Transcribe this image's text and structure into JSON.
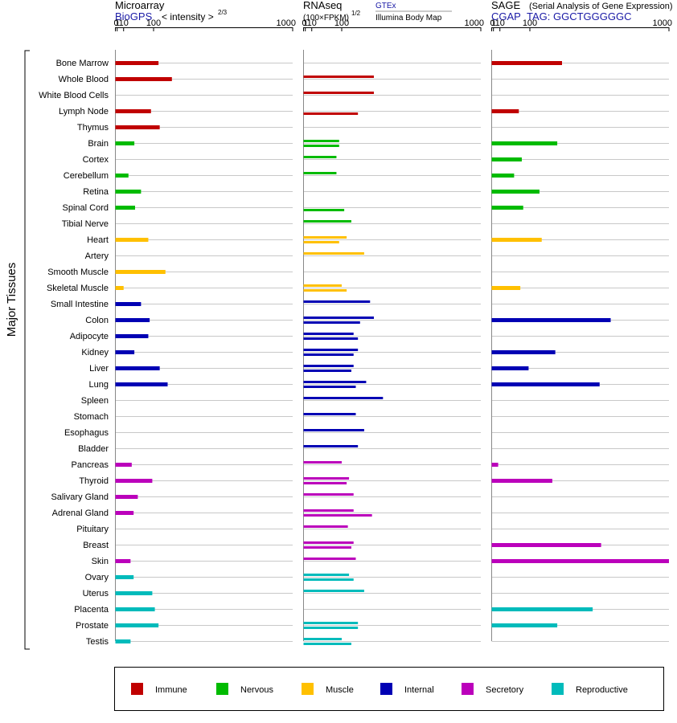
{
  "chart_data": {
    "type": "bar",
    "orientation": "horizontal",
    "y_axis_label": "Major Tissues",
    "scale": "power 2/3",
    "tick_labels": [
      "0",
      "1",
      "10",
      "100",
      "1000"
    ],
    "tick_values": [
      0,
      1,
      10,
      100,
      1000
    ],
    "xlim": [
      0,
      1000
    ],
    "categories": [
      "Bone Marrow",
      "Whole Blood",
      "White Blood Cells",
      "Lymph Node",
      "Thymus",
      "Brain",
      "Cortex",
      "Cerebellum",
      "Retina",
      "Spinal Cord",
      "Tibial Nerve",
      "Heart",
      "Artery",
      "Smooth Muscle",
      "Skeletal Muscle",
      "Small Intestine",
      "Colon",
      "Adipocyte",
      "Kidney",
      "Liver",
      "Lung",
      "Spleen",
      "Stomach",
      "Esophagus",
      "Bladder",
      "Pancreas",
      "Thyroid",
      "Salivary Gland",
      "Adrenal Gland",
      "Pituitary",
      "Breast",
      "Skin",
      "Ovary",
      "Uterus",
      "Placenta",
      "Prostate",
      "Testis"
    ],
    "groups": [
      {
        "name": "Immune",
        "color": "#c00000",
        "count": 5
      },
      {
        "name": "Nervous",
        "color": "#00bb00",
        "count": 6
      },
      {
        "name": "Muscle",
        "color": "#ffc000",
        "count": 4
      },
      {
        "name": "Internal",
        "color": "#0000b4",
        "count": 10
      },
      {
        "name": "Secretory",
        "color": "#bb00bb",
        "count": 7
      },
      {
        "name": "Reproductive",
        "color": "#00bbbb",
        "count": 5
      }
    ],
    "panels": [
      {
        "key": "microarray",
        "title": "Microarray",
        "source": "BioGPS",
        "unit_label": "< intensity >",
        "unit_exponent": "2/3",
        "values": [
          120,
          180,
          null,
          90,
          125,
          35,
          null,
          20,
          55,
          37,
          null,
          80,
          null,
          150,
          10,
          55,
          85,
          80,
          35,
          125,
          160,
          null,
          null,
          null,
          null,
          28,
          95,
          45,
          33,
          null,
          null,
          25,
          33,
          95,
          105,
          120,
          25
        ]
      },
      {
        "key": "rnaseq",
        "title": "RNAseq",
        "unit_label": "(100×FPKM)",
        "unit_exponent": "1/2",
        "source_top": "GTEx",
        "source_bottom": "Illumina Body Map",
        "values_gtex": [
          null,
          250,
          250,
          null,
          null,
          90,
          80,
          80,
          null,
          null,
          140,
          120,
          200,
          null,
          100,
          230,
          250,
          150,
          170,
          150,
          210,
          300,
          160,
          200,
          170,
          100,
          130,
          150,
          150,
          125,
          150,
          160,
          130,
          200,
          null,
          170,
          100
        ],
        "values_illumina": [
          null,
          null,
          null,
          170,
          null,
          90,
          null,
          null,
          null,
          110,
          null,
          90,
          null,
          null,
          120,
          null,
          180,
          170,
          150,
          140,
          160,
          null,
          null,
          null,
          null,
          null,
          120,
          null,
          240,
          null,
          140,
          null,
          150,
          null,
          null,
          170,
          140
        ]
      },
      {
        "key": "sage",
        "title": "SAGE",
        "subtitle": "(Serial Analysis of Gene Expression)",
        "source": "CGAP",
        "tag": "TAG: GGCTGGGGGC",
        "values": [
          250,
          null,
          null,
          60,
          null,
          225,
          70,
          45,
          140,
          75,
          null,
          150,
          null,
          null,
          65,
          null,
          550,
          null,
          215,
          95,
          475,
          null,
          null,
          null,
          null,
          7,
          200,
          null,
          null,
          null,
          485,
          1050,
          null,
          null,
          430,
          225,
          null
        ]
      }
    ],
    "legend": [
      "Immune",
      "Nervous",
      "Muscle",
      "Internal",
      "Secretory",
      "Reproductive"
    ],
    "legend_position": "bottom"
  }
}
